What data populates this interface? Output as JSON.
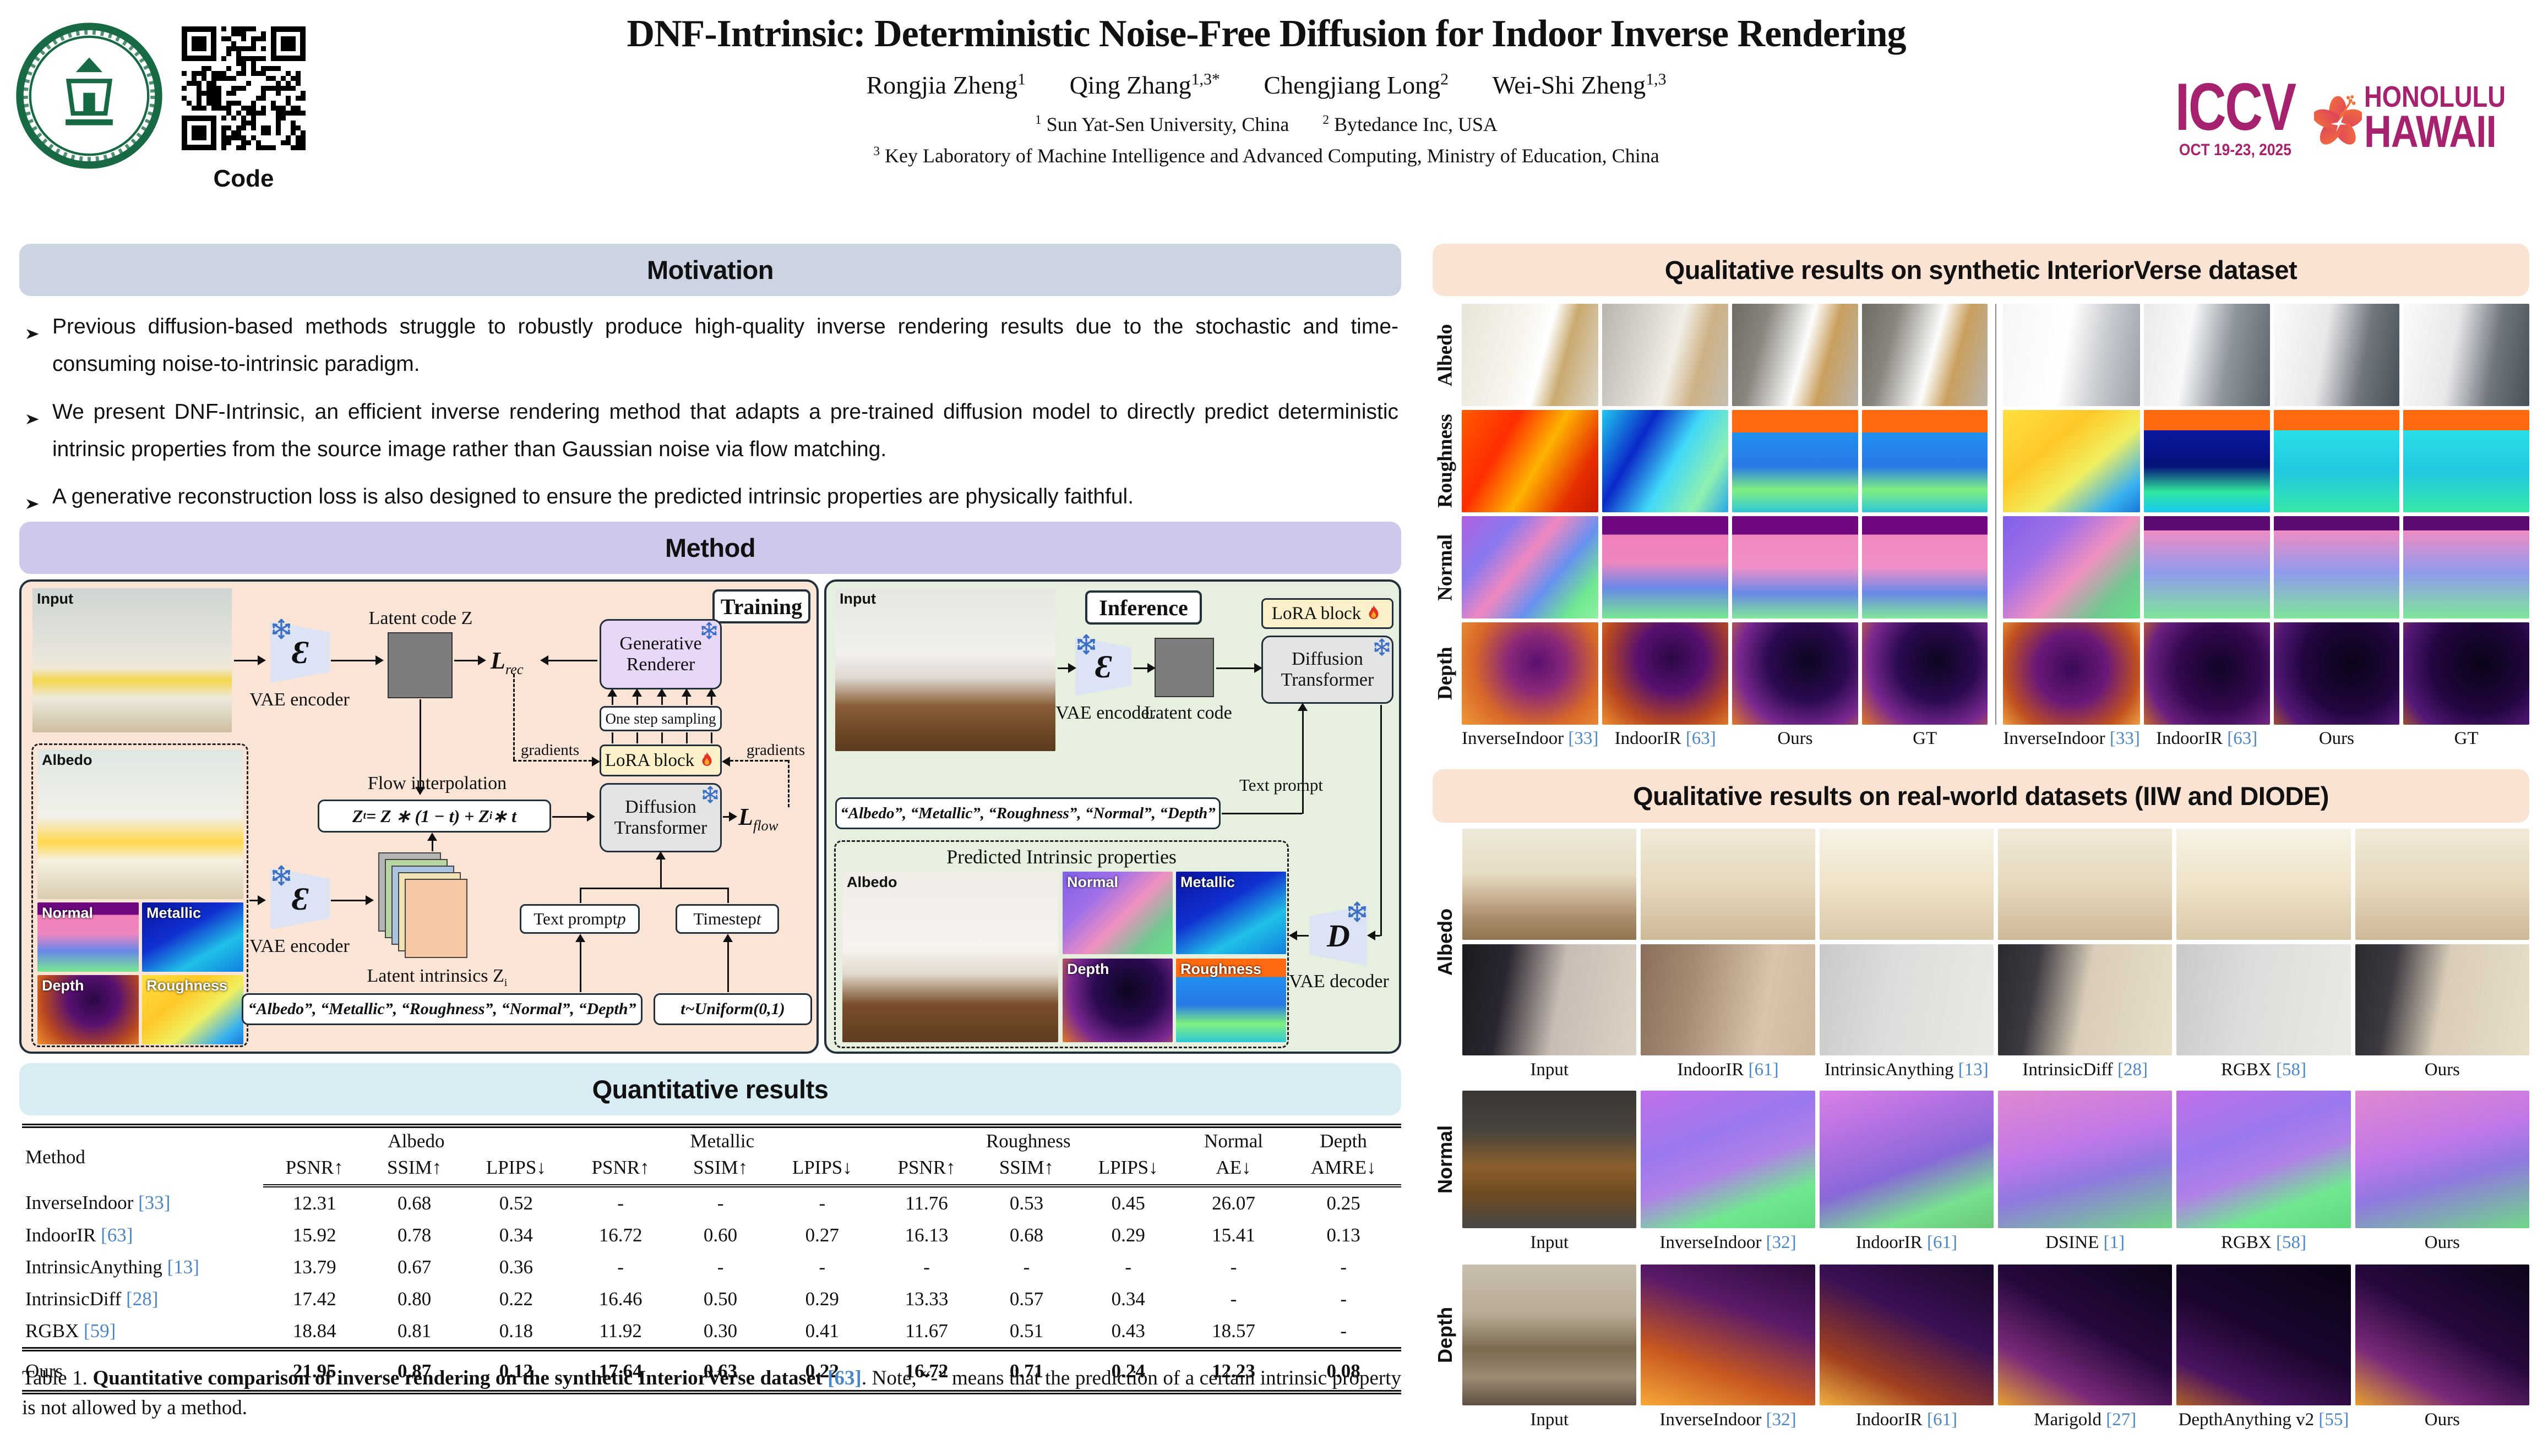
{
  "colors": {
    "citation_blue": "#4a86c8",
    "iccv_magenta": "#a6216e",
    "flower_orange": "#f0583a",
    "seal_green": "#176a43",
    "motivation_header_bg": "#ccd3e2",
    "method_header_bg": "#cfc7ec",
    "quant_header_bg": "#d8edf3",
    "right_header_bg": "#fbe3d3",
    "training_panel_bg": "#f9e4d6",
    "inference_panel_bg": "#e7f0df",
    "lora_bg": "#faf0c9",
    "renderer_bg": "#e9d7f8",
    "transformer_bg": "#e4e4e4",
    "vae_bg": "#dce3f5"
  },
  "icons": {
    "frozen": "snowflake",
    "trainable": "flame",
    "bullet": "arrowhead"
  },
  "header": {
    "title": "DNF-Intrinsic: Deterministic Noise-Free Diffusion for Indoor Inverse Rendering",
    "authors": [
      {
        "name": "Rongjia Zheng",
        "sup": "1"
      },
      {
        "name": "Qing Zhang",
        "sup": "1,3*"
      },
      {
        "name": "Chengjiang Long",
        "sup": "2"
      },
      {
        "name": "Wei-Shi Zheng",
        "sup": "1,3"
      }
    ],
    "affiliations": [
      {
        "sup": "1",
        "text": "Sun Yat-Sen University, China"
      },
      {
        "sup": "2",
        "text": "Bytedance Inc, USA"
      },
      {
        "sup": "3",
        "text": "Key Laboratory of Machine Intelligence and Advanced Computing, Ministry of Education, China"
      }
    ],
    "code_label": "Code",
    "iccv": {
      "acronym": "ICCV",
      "dates": "OCT 19-23, 2025",
      "city": "HONOLULU",
      "state": "HAWAII"
    }
  },
  "motivation": {
    "heading": "Motivation",
    "bullets": [
      "Previous diffusion-based methods struggle to robustly produce high-quality inverse rendering results due to the stochastic and time-consuming noise-to-intrinsic paradigm.",
      "We present DNF-Intrinsic, an efficient inverse rendering method that adapts a pre-trained diffusion model to directly predict deterministic intrinsic properties from the source image rather than Gaussian noise via flow matching.",
      "A generative reconstruction loss is also designed to ensure the predicted intrinsic properties are physically faithful."
    ]
  },
  "method": {
    "heading": "Method",
    "training": {
      "panel_label": "Training",
      "input_label": "Input",
      "vae_encoder_label": "VAE encoder",
      "latent_code_label": "Latent code Z",
      "loss_rec_base": "L",
      "loss_rec_sub": "rec",
      "generative_renderer": "Generative Renderer",
      "one_step_sampling": "One step sampling",
      "gradients_left": "gradients",
      "gradients_right": "gradients",
      "lora_label": "LoRA block",
      "flow_interpolation": "Flow interpolation",
      "formula": {
        "p1": "Z",
        "s1": "t",
        "p2": " = Z ∗ (1 − t) + Z",
        "s2": "i",
        "p3": " ∗ t"
      },
      "diffusion_transformer": "Diffusion Transformer",
      "loss_flow_base": "L",
      "loss_flow_sub": "flow",
      "albedo_label": "Albedo",
      "normal_label": "Normal",
      "metallic_label": "Metallic",
      "depth_label": "Depth",
      "roughness_label": "Roughness",
      "vae_encoder2_label": "VAE encoder",
      "latent_intrinsics": {
        "p": "Latent intrinsics Z",
        "s": "i"
      },
      "text_prompt": {
        "p": "Text prompt ",
        "s": "p"
      },
      "timestep": {
        "p": "Timestep ",
        "s": "t"
      },
      "prompts": "“Albedo”, “Metallic”, “Roughness”, “Normal”, “Depth”",
      "uniform": "t~Uniform(0,1)"
    },
    "inference": {
      "panel_label": "Inference",
      "input_label": "Input",
      "vae_encoder_label": "VAE encoder",
      "latent_code_label": "Latent code",
      "lora_label": "LoRA block",
      "diffusion_transformer": "Diffusion Transformer",
      "prompts": "“Albedo”, “Metallic”, “Roughness”, “Normal”, “Depth”",
      "text_prompt_label": "Text prompt",
      "predicted_label": "Predicted Intrinsic properties",
      "albedo_label": "Albedo",
      "normal_label": "Normal",
      "metallic_label": "Metallic",
      "depth_label": "Depth",
      "roughness_label": "Roughness",
      "vae_decoder_label": "VAE decoder"
    }
  },
  "quantitative": {
    "heading": "Quantitative results",
    "table": {
      "method_header": "Method",
      "groups": [
        {
          "label": "Albedo",
          "span": 3
        },
        {
          "label": "Metallic",
          "span": 3
        },
        {
          "label": "Roughness",
          "span": 3
        },
        {
          "label": "Normal",
          "span": 1
        },
        {
          "label": "Depth",
          "span": 1
        }
      ],
      "sub_headers": [
        "PSNR↑",
        "SSIM↑",
        "LPIPS↓",
        "PSNR↑",
        "SSIM↑",
        "LPIPS↓",
        "PSNR↑",
        "SSIM↑",
        "LPIPS↓",
        "AE↓",
        "AMRE↓"
      ],
      "rows": [
        {
          "method": "InverseIndoor",
          "cite": "[33]",
          "values": [
            "12.31",
            "0.68",
            "0.52",
            "-",
            "-",
            "-",
            "11.76",
            "0.53",
            "0.45",
            "26.07",
            "0.25"
          ]
        },
        {
          "method": "IndoorIR",
          "cite": "[63]",
          "values": [
            "15.92",
            "0.78",
            "0.34",
            "16.72",
            "0.60",
            "0.27",
            "16.13",
            "0.68",
            "0.29",
            "15.41",
            "0.13"
          ]
        },
        {
          "method": "IntrinsicAnything",
          "cite": "[13]",
          "values": [
            "13.79",
            "0.67",
            "0.36",
            "-",
            "-",
            "-",
            "-",
            "-",
            "-",
            "-",
            "-"
          ]
        },
        {
          "method": "IntrinsicDiff",
          "cite": "[28]",
          "values": [
            "17.42",
            "0.80",
            "0.22",
            "16.46",
            "0.50",
            "0.29",
            "13.33",
            "0.57",
            "0.34",
            "-",
            "-"
          ]
        },
        {
          "method": "RGBX",
          "cite": "[59]",
          "values": [
            "18.84",
            "0.81",
            "0.18",
            "11.92",
            "0.30",
            "0.41",
            "11.67",
            "0.51",
            "0.43",
            "18.57",
            "-"
          ]
        }
      ],
      "ours": {
        "method": "Ours",
        "values": [
          "21.95",
          "0.87",
          "0.12",
          "17.64",
          "0.63",
          "0.22",
          "16.72",
          "0.71",
          "0.24",
          "12.23",
          "0.08"
        ]
      }
    },
    "caption": {
      "prefix": "Table 1. ",
      "bold": "Quantitative comparison of inverse rendering on the synthetic InteriorVerse dataset ",
      "cite": "[63]",
      "rest": ". Note, “-” means that the prediction of a certain intrinsic property is not allowed by a method."
    }
  },
  "qual_synthetic": {
    "heading": "Qualitative results on synthetic InteriorVerse dataset",
    "row_labels": [
      "Albedo",
      "Roughness",
      "Normal",
      "Depth"
    ],
    "col_labels": [
      {
        "label": "InverseIndoor",
        "cite": "[33]"
      },
      {
        "label": "IndoorIR",
        "cite": "[63]"
      },
      {
        "label": "Ours"
      },
      {
        "label": "GT"
      },
      {
        "label": "InverseIndoor",
        "cite": "[33]"
      },
      {
        "label": "IndoorIR",
        "cite": "[63]"
      },
      {
        "label": "Ours"
      },
      {
        "label": "GT"
      }
    ]
  },
  "qual_real": {
    "heading": "Qualitative results on real-world datasets (IIW and DIODE)",
    "groups": [
      {
        "row_label": "Albedo",
        "rows": 2,
        "col_labels": [
          {
            "label": "Input"
          },
          {
            "label": "IndoorIR",
            "cite": "[61]"
          },
          {
            "label": "IntrinsicAnything",
            "cite": "[13]"
          },
          {
            "label": "IntrinsicDiff",
            "cite": "[28]"
          },
          {
            "label": "RGBX",
            "cite": "[58]"
          },
          {
            "label": "Ours"
          }
        ]
      },
      {
        "row_label": "Normal",
        "rows": 1,
        "col_labels": [
          {
            "label": "Input"
          },
          {
            "label": "InverseIndoor",
            "cite": "[32]"
          },
          {
            "label": "IndoorIR",
            "cite": "[61]"
          },
          {
            "label": "DSINE",
            "cite": "[1]"
          },
          {
            "label": "RGBX",
            "cite": "[58]"
          },
          {
            "label": "Ours"
          }
        ]
      },
      {
        "row_label": "Depth",
        "rows": 1,
        "col_labels": [
          {
            "label": "Input"
          },
          {
            "label": "InverseIndoor",
            "cite": "[32]"
          },
          {
            "label": "IndoorIR",
            "cite": "[61]"
          },
          {
            "label": "Marigold",
            "cite": "[27]"
          },
          {
            "label": "DepthAnything v2",
            "cite": "[55]"
          },
          {
            "label": "Ours"
          }
        ]
      }
    ]
  }
}
